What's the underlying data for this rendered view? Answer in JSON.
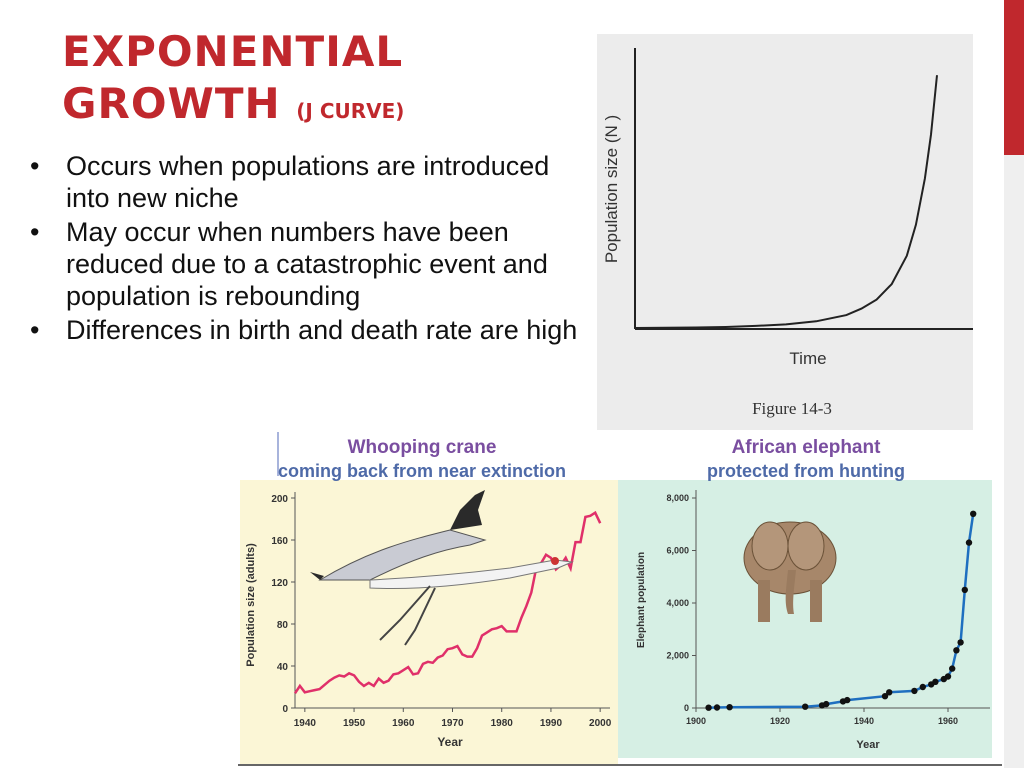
{
  "slide": {
    "title_line1": "EXPONENTIAL",
    "title_line2": "GROWTH",
    "title_sub": "(J CURVE)",
    "bullets": [
      "Occurs when populations are introduced into new niche",
      "May occur when numbers have been reduced due to a catastrophic event and population is rebounding",
      "Differences in birth and death rate are high"
    ],
    "bullet_glyph": "•",
    "accent_color": "#c0282d"
  },
  "chart_data": [
    {
      "type": "line",
      "ylabel": "Population size (N )",
      "xlabel": "Time",
      "caption": "Figure 14-3",
      "x": [
        0,
        0.1,
        0.2,
        0.3,
        0.4,
        0.5,
        0.6,
        0.7,
        0.75,
        0.8,
        0.85,
        0.9,
        0.93,
        0.96,
        0.98,
        1.0
      ],
      "y": [
        0,
        0.001,
        0.002,
        0.004,
        0.008,
        0.014,
        0.026,
        0.05,
        0.075,
        0.11,
        0.17,
        0.28,
        0.4,
        0.58,
        0.75,
        0.98
      ]
    },
    {
      "type": "line",
      "title": "Whooping crane",
      "subtitle": "coming back from near extinction",
      "xlabel": "Year",
      "ylabel": "Population size (adults)",
      "xticks": [
        "1940",
        "1950",
        "1960",
        "1970",
        "1980",
        "1990",
        "2000"
      ],
      "yticks": [
        "0",
        "40",
        "80",
        "120",
        "160",
        "200"
      ],
      "xlim": [
        1938,
        2002
      ],
      "ylim": [
        0,
        200
      ],
      "color": "#e0306a",
      "x": [
        1938,
        1939,
        1940,
        1941,
        1942,
        1943,
        1944,
        1945,
        1946,
        1947,
        1948,
        1949,
        1950,
        1951,
        1952,
        1953,
        1954,
        1955,
        1956,
        1957,
        1958,
        1959,
        1960,
        1961,
        1962,
        1963,
        1964,
        1965,
        1966,
        1967,
        1968,
        1969,
        1970,
        1971,
        1972,
        1973,
        1974,
        1975,
        1976,
        1977,
        1978,
        1979,
        1980,
        1981,
        1982,
        1983,
        1984,
        1985,
        1986,
        1987,
        1988,
        1989,
        1990,
        1991,
        1992,
        1993,
        1994,
        1995,
        1996,
        1997,
        1998,
        1999,
        2000
      ],
      "y": [
        14,
        21,
        15,
        16,
        17,
        18,
        22,
        26,
        29,
        31,
        30,
        33,
        31,
        25,
        21,
        24,
        21,
        28,
        24,
        26,
        32,
        33,
        36,
        39,
        32,
        33,
        42,
        44,
        43,
        48,
        50,
        56,
        57,
        59,
        51,
        49,
        49,
        57,
        69,
        72,
        75,
        76,
        78,
        73,
        73,
        73,
        86,
        97,
        110,
        133,
        138,
        146,
        143,
        132,
        136,
        143,
        133,
        158,
        158,
        182,
        183,
        186,
        176
      ]
    },
    {
      "type": "scatter",
      "title": "African elephant",
      "subtitle": "protected from hunting",
      "xlabel": "Year",
      "ylabel": "Elephant population",
      "xticks": [
        "1900",
        "1920",
        "1940",
        "1960"
      ],
      "yticks": [
        "0",
        "2,000",
        "4,000",
        "6,000",
        "8,000"
      ],
      "xlim": [
        1900,
        1970
      ],
      "ylim": [
        0,
        8000
      ],
      "color": "#1f6fc0",
      "x": [
        1903,
        1905,
        1908,
        1926,
        1930,
        1931,
        1935,
        1936,
        1945,
        1946,
        1952,
        1954,
        1956,
        1957,
        1959,
        1960,
        1961,
        1962,
        1963,
        1964,
        1965,
        1966
      ],
      "y": [
        10,
        20,
        30,
        50,
        100,
        150,
        250,
        300,
        450,
        600,
        650,
        800,
        900,
        1000,
        1100,
        1200,
        1500,
        2200,
        2500,
        4500,
        6300,
        7400
      ]
    }
  ]
}
